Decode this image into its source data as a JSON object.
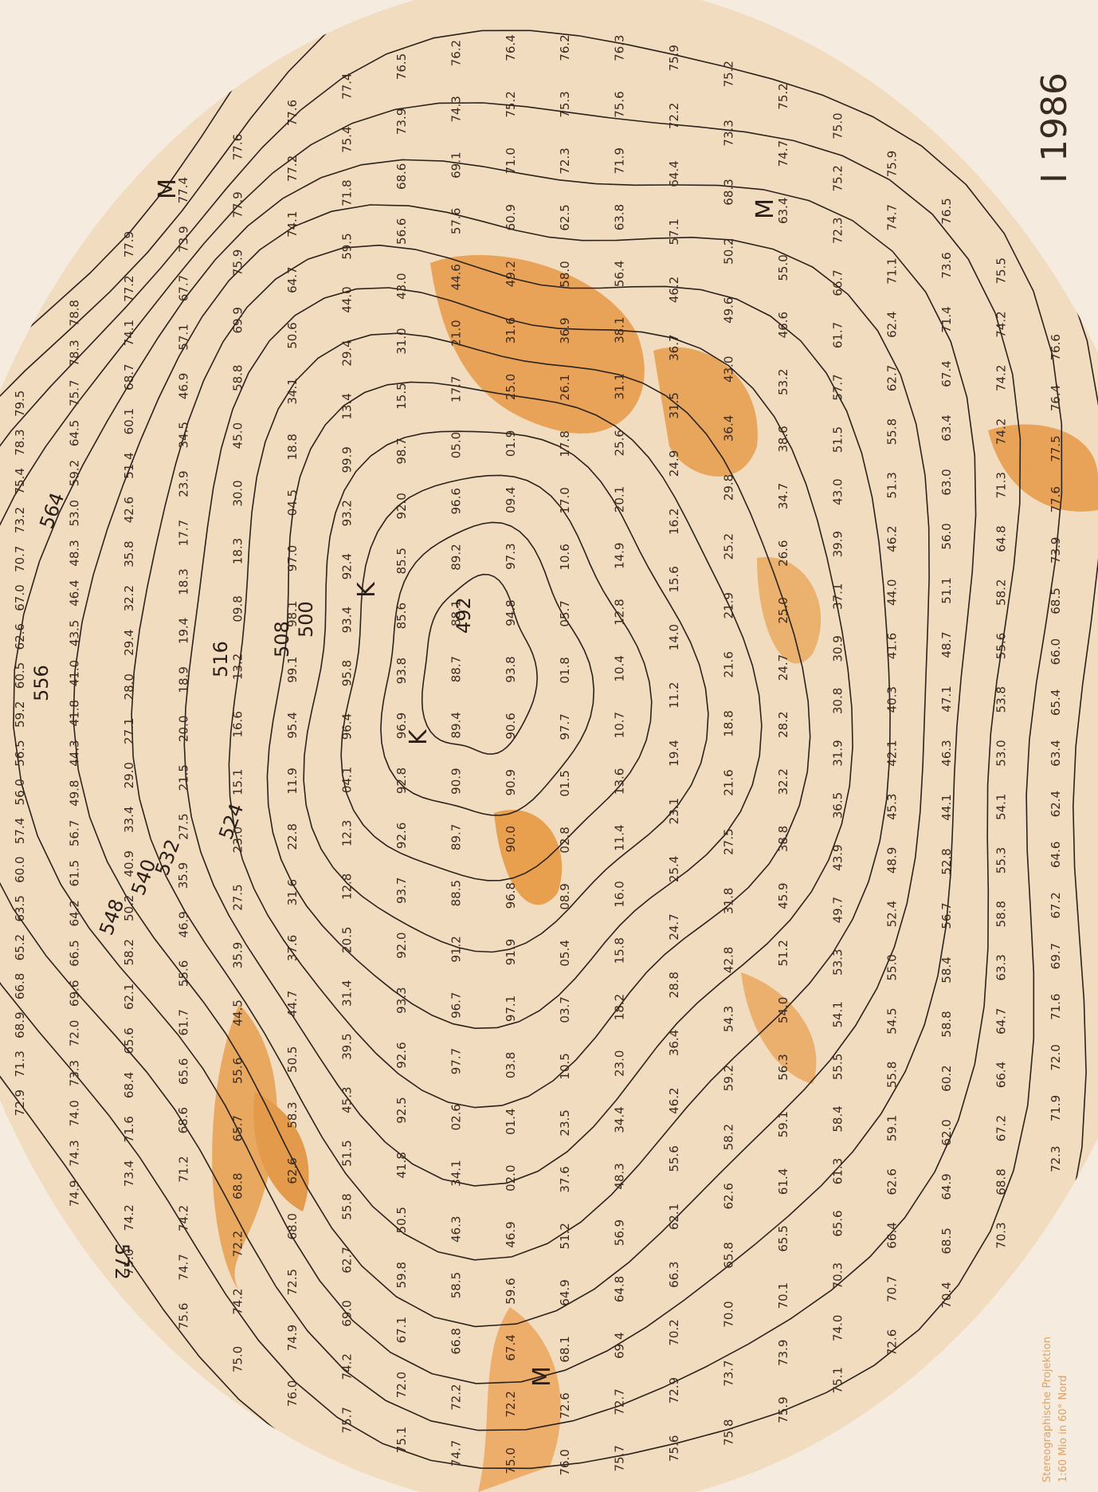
{
  "title": "I 1986",
  "projection": [
    "Stereographische Projektion",
    "1:60 Mio in 60° Nord"
  ],
  "contours": {
    "labels": [
      "492",
      "500",
      "508",
      "516",
      "524",
      "532",
      "540",
      "548",
      "556",
      "564",
      "572"
    ]
  },
  "centers": {
    "low": "K",
    "high": "M"
  },
  "stations": [
    [
      "79.5",
      "78.3",
      "75.4",
      "73.2",
      "70.7",
      "67.0",
      "62.6",
      "60.5",
      "59.2",
      "56.5",
      "56.0",
      "57.4",
      "60.0",
      "63.5",
      "65.2",
      "66.8",
      "68.9",
      "71.3",
      "72.9"
    ],
    [
      "78.8",
      "78.3",
      "75.7",
      "64.5",
      "59.2",
      "53.0",
      "48.3",
      "46.4",
      "43.5",
      "41.0",
      "41.8",
      "44.3",
      "49.8",
      "56.7",
      "61.5",
      "64.2",
      "66.5",
      "69.6",
      "72.0",
      "73.3",
      "74.0",
      "74.3",
      "74.9"
    ],
    [
      "77.9",
      "77.2",
      "74.1",
      "68.7",
      "60.1",
      "51.4",
      "42.6",
      "35.8",
      "32.2",
      "29.4",
      "28.0",
      "27.1",
      "29.0",
      "33.4",
      "40.9",
      "50.2",
      "58.2",
      "62.1",
      "65.6",
      "68.4",
      "71.6",
      "73.4",
      "74.2",
      "75.0"
    ],
    [
      "77.4",
      "73.9",
      "67.7",
      "57.1",
      "46.9",
      "34.5",
      "23.9",
      "17.7",
      "18.3",
      "19.4",
      "18.9",
      "20.0",
      "21.5",
      "27.5",
      "35.9",
      "46.9",
      "55.6",
      "61.7",
      "65.6",
      "68.6",
      "71.2",
      "74.2",
      "74.7",
      "75.6"
    ],
    [
      "77.6",
      "77.9",
      "75.9",
      "69.9",
      "58.8",
      "45.0",
      "30.0",
      "18.3",
      "09.8",
      "13.2",
      "16.6",
      "15.1",
      "23.0",
      "27.5",
      "35.9",
      "44.5",
      "55.6",
      "65.7",
      "68.8",
      "72.2",
      "74.2",
      "75.0"
    ],
    [
      "77.6",
      "77.2",
      "74.1",
      "64.7",
      "50.6",
      "34.1",
      "18.8",
      "04.5",
      "97.0",
      "98.1",
      "99.1",
      "95.4",
      "11.9",
      "22.8",
      "31.6",
      "37.6",
      "44.7",
      "50.5",
      "58.3",
      "62.6",
      "68.0",
      "72.5",
      "74.9",
      "76.0"
    ],
    [
      "77.4",
      "75.4",
      "71.8",
      "59.5",
      "44.0",
      "29.4",
      "13.4",
      "99.9",
      "93.2",
      "92.4",
      "93.4",
      "95.8",
      "96.4",
      "04.1",
      "12.3",
      "12.8",
      "20.5",
      "31.4",
      "39.5",
      "45.3",
      "51.5",
      "55.8",
      "62.7",
      "69.0",
      "74.2",
      "75.7"
    ],
    [
      "76.5",
      "73.9",
      "68.6",
      "56.6",
      "43.0",
      "31.0",
      "15.5",
      "98.7",
      "92.0",
      "85.5",
      "85.6",
      "93.8",
      "96.9",
      "92.8",
      "92.6",
      "93.7",
      "92.0",
      "93.3",
      "92.6",
      "92.5",
      "41.8",
      "50.5",
      "59.8",
      "67.1",
      "72.0",
      "75.1"
    ],
    [
      "76.2",
      "74.3",
      "69.1",
      "57.6",
      "44.6",
      "21.0",
      "17.7",
      "05.0",
      "96.6",
      "89.2",
      "88.1",
      "88.7",
      "89.4",
      "90.9",
      "89.7",
      "88.5",
      "91.2",
      "96.7",
      "97.7",
      "02.6",
      "34.1",
      "46.3",
      "58.5",
      "66.8",
      "72.2",
      "74.7"
    ],
    [
      "76.4",
      "75.2",
      "71.0",
      "60.9",
      "49.2",
      "31.6",
      "25.0",
      "01.9",
      "09.4",
      "97.3",
      "94.8",
      "93.8",
      "90.6",
      "90.9",
      "90.0",
      "96.8",
      "91.9",
      "97.1",
      "03.8",
      "01.4",
      "02.0",
      "46.9",
      "59.6",
      "67.4",
      "72.2",
      "75.0"
    ],
    [
      "76.2",
      "75.3",
      "72.3",
      "62.5",
      "58.0",
      "36.9",
      "26.1",
      "17.8",
      "17.0",
      "10.6",
      "05.7",
      "01.8",
      "97.7",
      "01.5",
      "02.8",
      "08.9",
      "05.4",
      "03.7",
      "10.5",
      "23.5",
      "37.6",
      "51.2",
      "64.9",
      "68.1",
      "72.6",
      "76.0"
    ],
    [
      "76.3",
      "75.6",
      "71.9",
      "63.8",
      "56.4",
      "38.1",
      "31.1",
      "25.6",
      "20.1",
      "14.9",
      "12.8",
      "10.4",
      "10.7",
      "13.6",
      "11.4",
      "16.0",
      "15.8",
      "18.2",
      "23.0",
      "34.4",
      "48.3",
      "56.9",
      "64.8",
      "69.4",
      "72.7",
      "75.7"
    ],
    [
      "75.9",
      "72.2",
      "64.4",
      "57.1",
      "46.2",
      "36.7",
      "31.5",
      "24.9",
      "16.2",
      "15.6",
      "14.0",
      "11.2",
      "19.4",
      "23.1",
      "25.4",
      "24.7",
      "28.8",
      "36.4",
      "46.2",
      "55.6",
      "62.1",
      "66.3",
      "70.2",
      "72.9",
      "75.6"
    ],
    [
      "75.2",
      "73.3",
      "68.3",
      "50.2",
      "49.6",
      "43.0",
      "36.4",
      "29.8",
      "25.2",
      "21.9",
      "21.6",
      "18.8",
      "21.6",
      "27.5",
      "31.8",
      "42.8",
      "54.3",
      "59.2",
      "58.2",
      "62.6",
      "65.8",
      "70.0",
      "73.7",
      "75.8"
    ],
    [
      "75.2",
      "74.7",
      "63.4",
      "55.0",
      "46.6",
      "53.2",
      "38.6",
      "34.7",
      "26.6",
      "25.0",
      "24.7",
      "28.2",
      "32.2",
      "38.8",
      "45.9",
      "51.2",
      "54.0",
      "56.3",
      "59.1",
      "61.4",
      "65.5",
      "70.1",
      "73.9",
      "75.9"
    ],
    [
      "75.0",
      "75.2",
      "72.3",
      "66.7",
      "61.7",
      "57.7",
      "51.5",
      "43.0",
      "39.9",
      "37.1",
      "30.9",
      "30.8",
      "31.9",
      "36.5",
      "43.9",
      "49.7",
      "53.3",
      "54.1",
      "55.5",
      "58.4",
      "61.3",
      "65.6",
      "70.3",
      "74.0",
      "75.1"
    ],
    [
      "75.9",
      "74.7",
      "71.1",
      "62.4",
      "62.7",
      "55.8",
      "51.3",
      "46.2",
      "44.0",
      "41.6",
      "40.3",
      "42.1",
      "45.3",
      "48.9",
      "52.4",
      "55.0",
      "54.5",
      "55.8",
      "59.1",
      "62.6",
      "66.4",
      "70.7",
      "72.6"
    ],
    [
      "76.5",
      "73.6",
      "71.4",
      "67.4",
      "63.4",
      "63.0",
      "56.0",
      "51.1",
      "48.7",
      "47.1",
      "46.3",
      "44.1",
      "52.8",
      "56.7",
      "58.4",
      "58.8",
      "60.2",
      "62.0",
      "64.9",
      "68.5",
      "70.4"
    ],
    [
      "75.5",
      "74.2",
      "74.2",
      "74.2",
      "71.3",
      "64.8",
      "58.2",
      "55.6",
      "53.8",
      "53.0",
      "54.1",
      "55.3",
      "58.8",
      "63.3",
      "64.7",
      "66.4",
      "67.2",
      "68.8",
      "70.3"
    ],
    [
      "76.6",
      "76.4",
      "77.5",
      "77.6",
      "73.9",
      "68.5",
      "66.0",
      "65.4",
      "63.4",
      "62.4",
      "64.6",
      "67.2",
      "69.7",
      "71.6",
      "72.0",
      "71.9",
      "72.3"
    ]
  ]
}
